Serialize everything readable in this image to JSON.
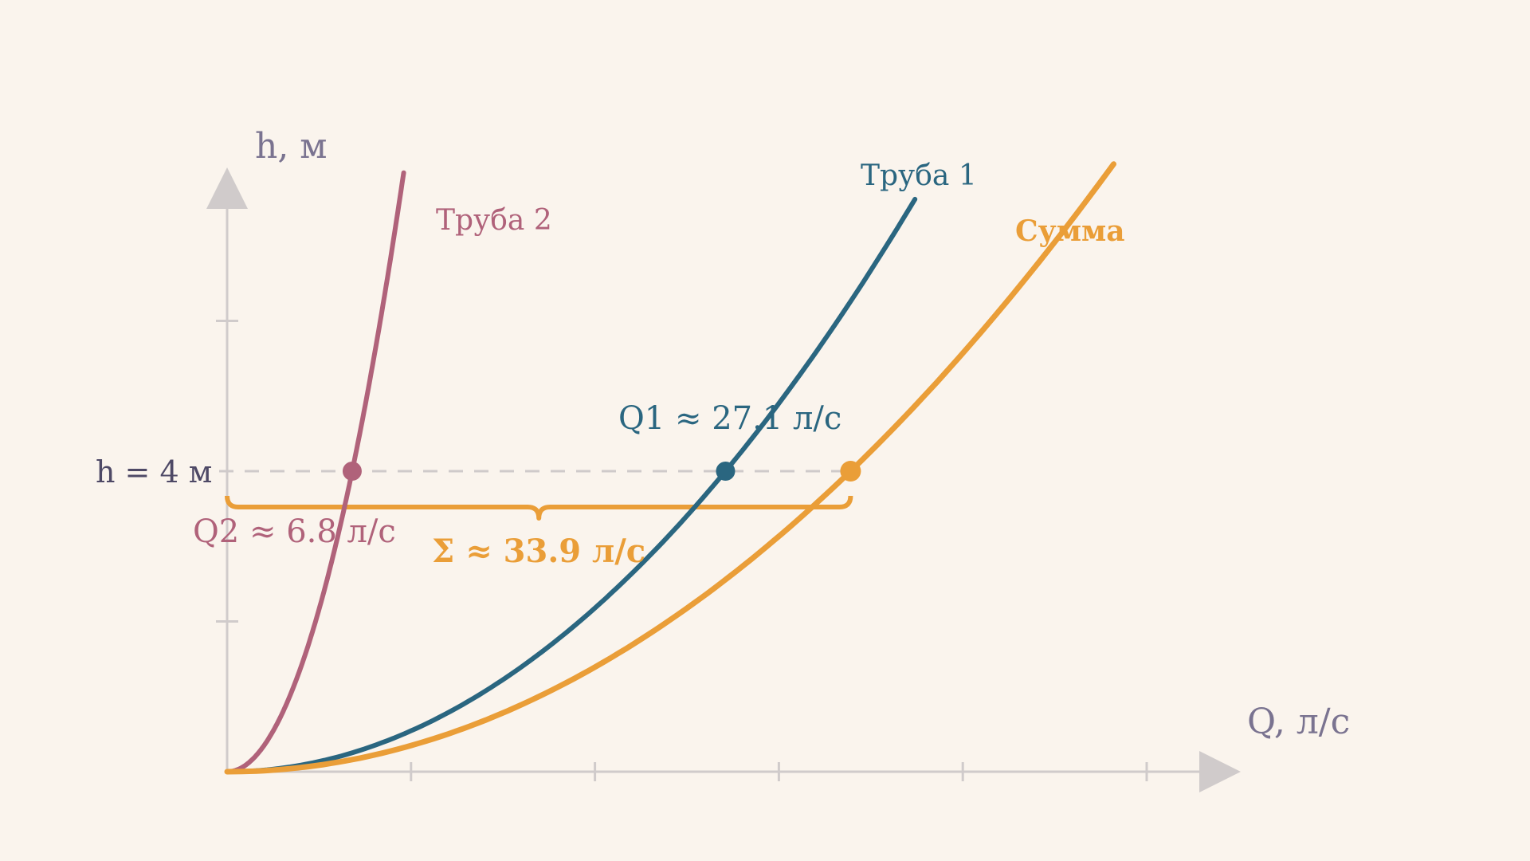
{
  "chart_data": {
    "type": "line",
    "xlabel": "Q, л/с",
    "ylabel": "h, м",
    "xlim": [
      0,
      55
    ],
    "ylim": [
      0,
      10
    ],
    "x_ticks": [
      10,
      20,
      30,
      40,
      50
    ],
    "y_ticks": [
      5
    ],
    "grid": false,
    "level": {
      "h": 4,
      "label": "h = 4 м"
    },
    "series": [
      {
        "name": "Труба 2",
        "color": "#b0627a",
        "k": 0.0865,
        "x_max": 9.6,
        "point": {
          "x": 6.8,
          "y": 4,
          "label": "Q2  ≈  6.8 л/с"
        }
      },
      {
        "name": "Труба 1",
        "color": "#2a6680",
        "k": 0.005447,
        "x_max": 37.4,
        "point": {
          "x": 27.1,
          "y": 4,
          "label": "Q1  ≈  27.1 л/с"
        }
      },
      {
        "name": "Сумма",
        "color": "#ea9e38",
        "k": 0.003481,
        "x_max": 48.2,
        "point": {
          "x": 33.9,
          "y": 4,
          "label": "Σ  ≈  33.9 л/с"
        }
      }
    ],
    "sum_brace": {
      "from": 0,
      "to": 33.9
    }
  }
}
